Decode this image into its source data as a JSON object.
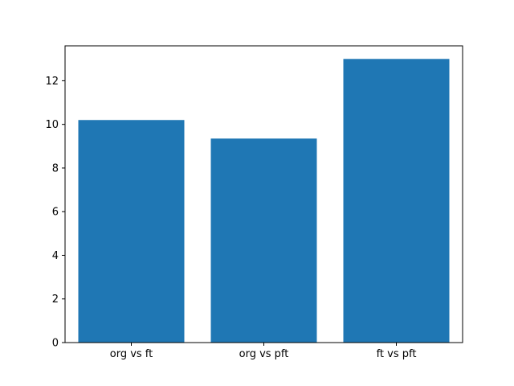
{
  "chart_data": {
    "type": "bar",
    "categories": [
      "org vs ft",
      "org vs pft",
      "ft vs pft"
    ],
    "values": [
      10.2,
      9.35,
      13.0
    ],
    "title": "",
    "xlabel": "",
    "ylabel": "",
    "ylim": [
      0,
      13.6
    ],
    "yticks": [
      0,
      2,
      4,
      6,
      8,
      10,
      12
    ],
    "bar_width_fraction": 0.8,
    "bar_color": "#1f77b4",
    "axis_color": "#000000",
    "background_color": "#ffffff",
    "grid": false,
    "legend": false
  }
}
